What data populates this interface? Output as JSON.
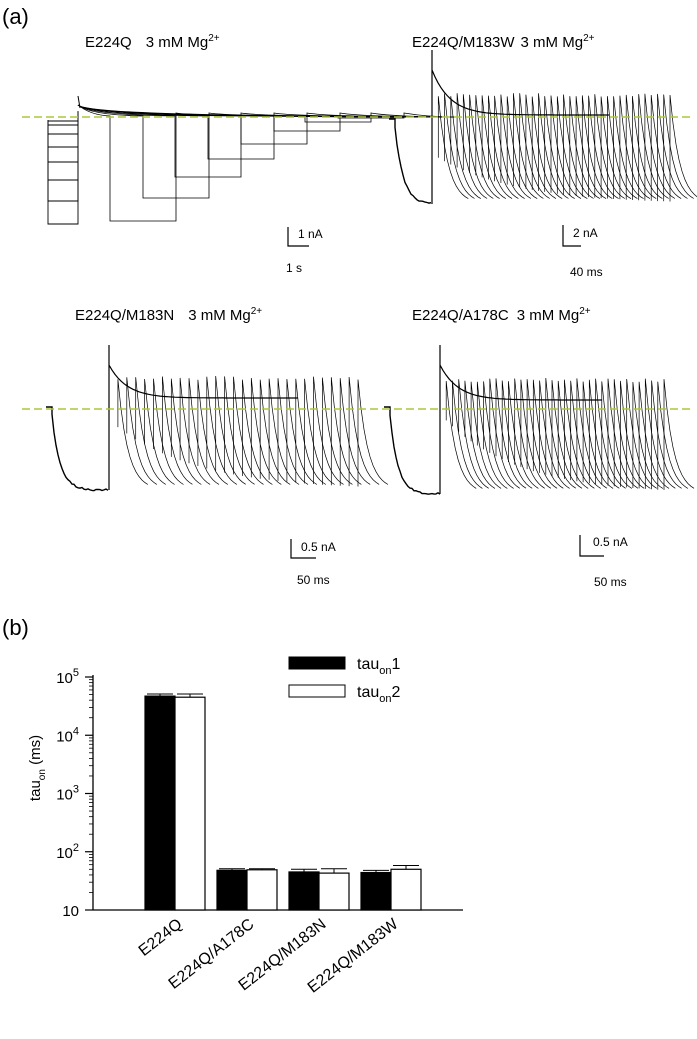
{
  "panel_a": {
    "label": "(a)",
    "traces": [
      {
        "name": "E224Q",
        "condition": "3 mM Mg",
        "ion_charge": "2+",
        "scale_y": "1 nA",
        "scale_x": "1 s"
      },
      {
        "name": "E224Q/M183W",
        "condition": "3 mM Mg",
        "ion_charge": "2+",
        "scale_y": "2 nA",
        "scale_x": "40 ms"
      },
      {
        "name": "E224Q/M183N",
        "condition": "3 mM Mg",
        "ion_charge": "2+",
        "scale_y": "0.5 nA",
        "scale_x": "50 ms"
      },
      {
        "name": "E224Q/A178C",
        "condition": "3 mM Mg",
        "ion_charge": "2+",
        "scale_y": "0.5 nA",
        "scale_x": "50 ms"
      }
    ],
    "baseline_color": "#a8c83c",
    "trace_color": "#000000"
  },
  "panel_b": {
    "label": "(b)",
    "ylabel_main": "tau",
    "ylabel_sub": "on",
    "ylabel_unit": " (ms)",
    "yticks": [
      {
        "value": 10,
        "base": "10",
        "exp": ""
      },
      {
        "value": 100,
        "base": "10",
        "exp": "2"
      },
      {
        "value": 1000,
        "base": "10",
        "exp": "3"
      },
      {
        "value": 10000,
        "base": "10",
        "exp": "4"
      },
      {
        "value": 100000,
        "base": "10",
        "exp": "5"
      }
    ],
    "legend": [
      {
        "main": "tau",
        "sub": "on",
        "suffix": "1",
        "fill": "#000000"
      },
      {
        "main": "tau",
        "sub": "on",
        "suffix": "2",
        "fill": "#ffffff"
      }
    ]
  },
  "chart_data": {
    "type": "bar",
    "categories": [
      "E224Q",
      "E224Q/A178C",
      "E224Q/M183N",
      "E224Q/M183W"
    ],
    "series": [
      {
        "name": "tau_on1",
        "values": [
          47000,
          48,
          45,
          44
        ],
        "errors": [
          4000,
          3,
          5,
          4
        ]
      },
      {
        "name": "tau_on2",
        "values": [
          45000,
          49,
          43,
          50
        ],
        "errors": [
          6000,
          2,
          8,
          8
        ]
      }
    ],
    "ylabel": "tau_on (ms)",
    "yscale": "log",
    "ylim": [
      10,
      100000
    ],
    "legend_position": "top-right",
    "grid": false
  }
}
